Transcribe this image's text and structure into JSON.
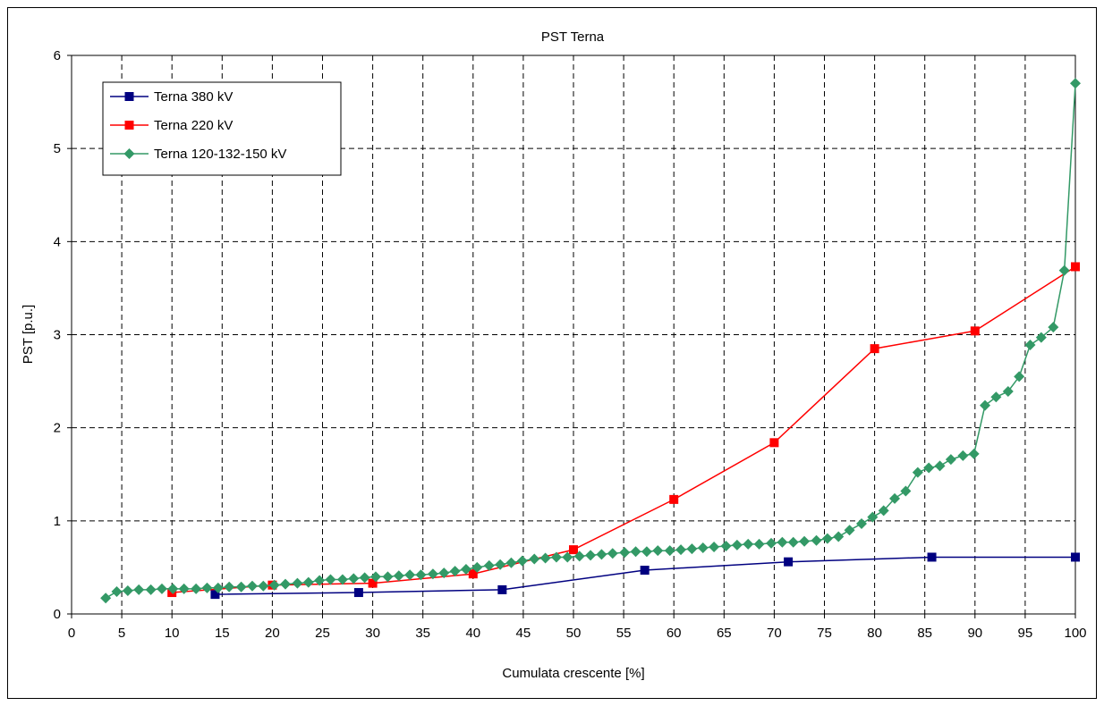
{
  "chart_data": {
    "type": "line",
    "title": "PST Terna",
    "xlabel": "Cumulata crescente [%]",
    "ylabel": "PST [p.u.]",
    "xlim": [
      0,
      100
    ],
    "ylim": [
      0,
      6
    ],
    "x_ticks": [
      "0",
      "5",
      "10",
      "15",
      "20",
      "25",
      "30",
      "35",
      "40",
      "45",
      "50",
      "55",
      "60",
      "65",
      "70",
      "75",
      "80",
      "85",
      "90",
      "95",
      "100"
    ],
    "y_ticks": [
      "0",
      "1",
      "2",
      "3",
      "4",
      "5",
      "6"
    ],
    "grid": true,
    "legend_position": "top-left",
    "series": [
      {
        "name": "Terna 380 kV",
        "color": "#000080",
        "marker": "square",
        "x": [
          14.3,
          28.6,
          42.9,
          57.1,
          71.4,
          85.7,
          100
        ],
        "y": [
          0.21,
          0.23,
          0.26,
          0.47,
          0.56,
          0.61,
          0.61
        ]
      },
      {
        "name": "Terna 220 kV",
        "color": "#ff0000",
        "marker": "square",
        "x": [
          10,
          20,
          30,
          40,
          50,
          60,
          70,
          80,
          90,
          100
        ],
        "y": [
          0.23,
          0.31,
          0.33,
          0.43,
          0.69,
          1.23,
          1.84,
          2.85,
          3.04,
          3.73
        ]
      },
      {
        "name": "Terna 120-132-150 kV",
        "color": "#339966",
        "marker": "diamond",
        "x": [
          3.4,
          4.5,
          5.6,
          6.7,
          7.9,
          9.0,
          10.1,
          11.2,
          12.4,
          13.5,
          14.6,
          15.7,
          16.9,
          18.0,
          19.1,
          20.2,
          21.3,
          22.5,
          23.6,
          24.7,
          25.8,
          27.0,
          28.1,
          29.2,
          30.3,
          31.5,
          32.6,
          33.7,
          34.8,
          36.0,
          37.1,
          38.2,
          39.3,
          40.4,
          41.6,
          42.7,
          43.8,
          44.9,
          46.1,
          47.2,
          48.3,
          49.4,
          50.6,
          51.7,
          52.8,
          53.9,
          55.1,
          56.2,
          57.3,
          58.4,
          59.6,
          60.7,
          61.8,
          62.9,
          64.0,
          65.2,
          66.3,
          67.4,
          68.5,
          69.7,
          70.8,
          71.9,
          73.0,
          74.2,
          75.3,
          76.4,
          77.5,
          78.7,
          79.8,
          80.9,
          82.0,
          83.1,
          84.3,
          85.4,
          86.5,
          87.6,
          88.8,
          89.9,
          91.0,
          92.1,
          93.3,
          94.4,
          95.5,
          96.6,
          97.8,
          98.9,
          100.0
        ],
        "y": [
          0.17,
          0.24,
          0.25,
          0.26,
          0.26,
          0.27,
          0.27,
          0.27,
          0.27,
          0.28,
          0.28,
          0.29,
          0.29,
          0.3,
          0.3,
          0.31,
          0.32,
          0.33,
          0.34,
          0.36,
          0.37,
          0.37,
          0.38,
          0.39,
          0.4,
          0.4,
          0.41,
          0.42,
          0.42,
          0.43,
          0.44,
          0.46,
          0.48,
          0.5,
          0.52,
          0.53,
          0.55,
          0.57,
          0.59,
          0.6,
          0.61,
          0.61,
          0.62,
          0.63,
          0.64,
          0.65,
          0.66,
          0.67,
          0.67,
          0.68,
          0.68,
          0.69,
          0.7,
          0.71,
          0.72,
          0.73,
          0.74,
          0.75,
          0.75,
          0.76,
          0.77,
          0.77,
          0.78,
          0.79,
          0.81,
          0.83,
          0.9,
          0.97,
          1.04,
          1.11,
          1.24,
          1.32,
          1.52,
          1.57,
          1.59,
          1.66,
          1.7,
          1.72,
          2.24,
          2.33,
          2.39,
          2.55,
          2.89,
          2.97,
          3.08,
          3.69,
          5.7
        ]
      }
    ]
  }
}
